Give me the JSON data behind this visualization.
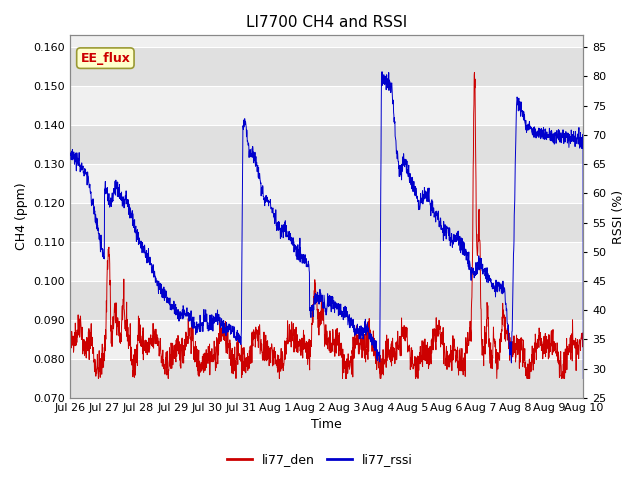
{
  "title": "LI7700 CH4 and RSSI",
  "xlabel": "Time",
  "ylabel_left": "CH4 (ppm)",
  "ylabel_right": "RSSI (%)",
  "ylim_left": [
    0.07,
    0.163
  ],
  "ylim_right": [
    25,
    87
  ],
  "yticks_left": [
    0.07,
    0.08,
    0.09,
    0.1,
    0.11,
    0.12,
    0.13,
    0.14,
    0.15,
    0.16
  ],
  "yticks_right": [
    25,
    30,
    35,
    40,
    45,
    50,
    55,
    60,
    65,
    70,
    75,
    80,
    85
  ],
  "color_ch4": "#cc0000",
  "color_rssi": "#0000cc",
  "legend_labels": [
    "li77_den",
    "li77_rssi"
  ],
  "annotation_text": "EE_flux",
  "annotation_bg": "#ffffcc",
  "annotation_border": "#999933",
  "figure_bg_color": "#ffffff",
  "plot_bg_light": "#f0f0f0",
  "plot_bg_dark": "#e0e0e0",
  "grid_color": "#ffffff",
  "tick_labels": [
    "Jul 26",
    "Jul 27",
    "Jul 28",
    "Jul 29",
    "Jul 30",
    "Jul 31",
    "Aug 1",
    "Aug 2",
    "Aug 3",
    "Aug 4",
    "Aug 5",
    "Aug 6",
    "Aug 7",
    "Aug 8",
    "Aug 9",
    "Aug 10"
  ],
  "title_fontsize": 11,
  "label_fontsize": 9,
  "tick_fontsize": 8
}
